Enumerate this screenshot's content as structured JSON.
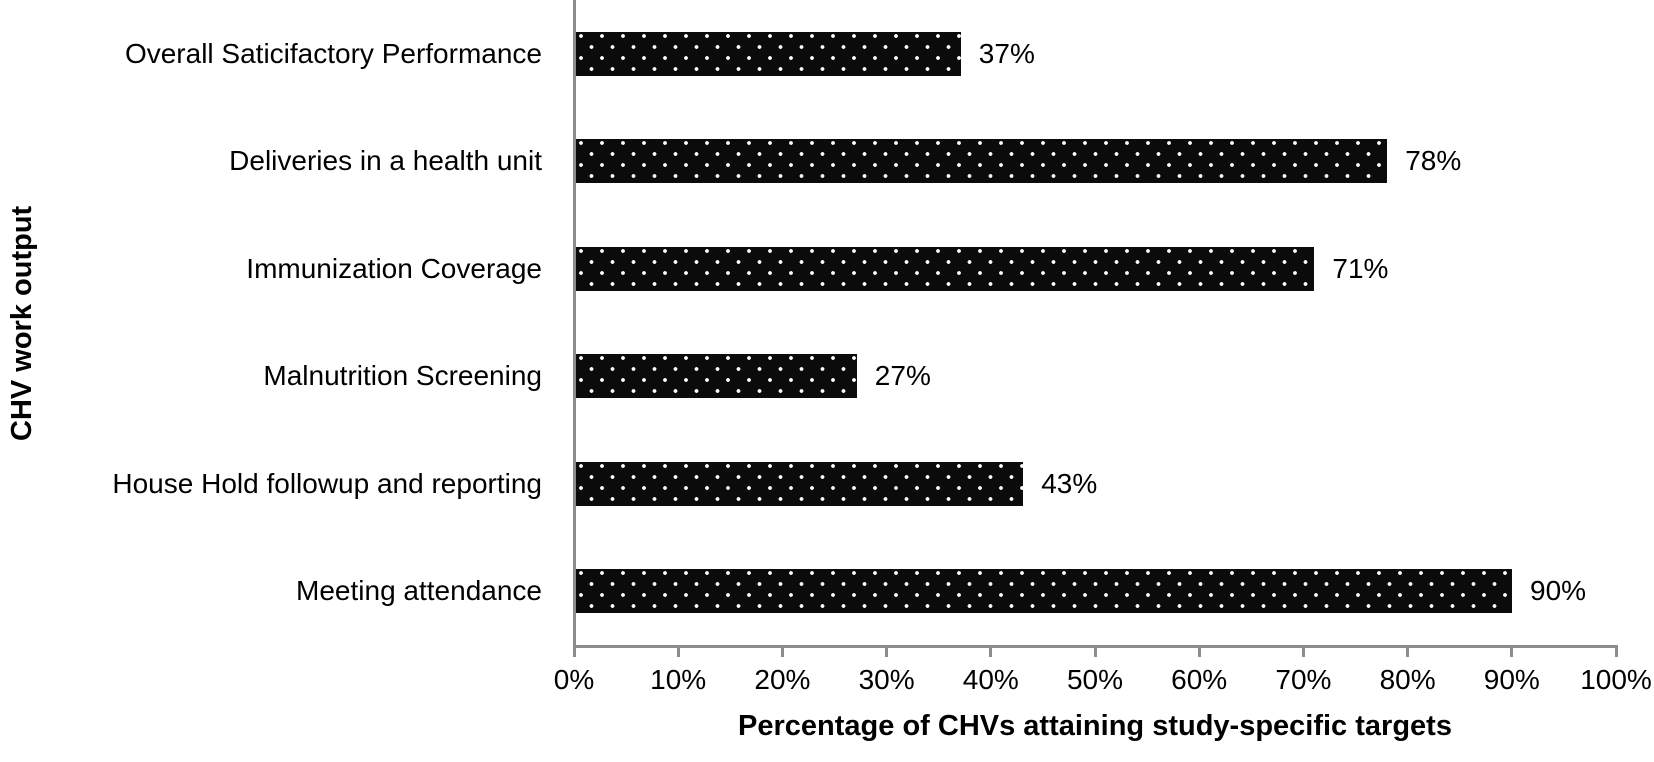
{
  "chart_data": {
    "type": "bar",
    "orientation": "horizontal",
    "title": "",
    "categories": [
      "Overall Saticifactory Performance",
      "Deliveries in a health unit",
      "Immunization Coverage",
      "Malnutrition Screening",
      "House Hold followup and reporting",
      "Meeting attendance"
    ],
    "values": [
      37,
      78,
      71,
      27,
      43,
      90
    ],
    "data_labels": [
      "37%",
      "78%",
      "71%",
      "27%",
      "43%",
      "90%"
    ],
    "xlabel": "Percentage of CHVs attaining study-specific targets",
    "ylabel": "CHV work output",
    "xlim": [
      0,
      100
    ],
    "x_ticks": [
      0,
      10,
      20,
      30,
      40,
      50,
      60,
      70,
      80,
      90,
      100
    ],
    "x_tick_labels": [
      "0%",
      "10%",
      "20%",
      "30%",
      "40%",
      "50%",
      "60%",
      "70%",
      "80%",
      "90%",
      "100%"
    ],
    "grid": false,
    "legend": false,
    "bar_fill": "pattern-white-dots-on-black",
    "bar_color": "#0b0b0b",
    "dot_color": "#ffffff",
    "axis_color": "#8c8c8c",
    "text_color": "#000000"
  }
}
